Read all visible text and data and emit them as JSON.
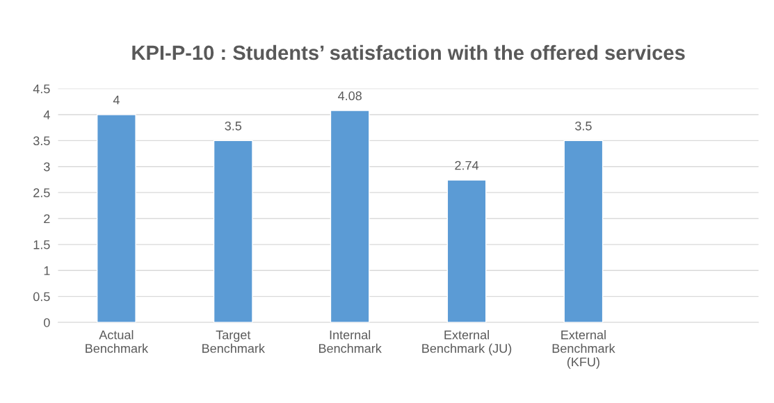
{
  "chart_data": {
    "type": "bar",
    "title": "KPI-P-10 : Students’ satisfaction with the offered services",
    "categories": [
      "Actual Benchmark",
      "Target Benchmark",
      "Internal Benchmark",
      "External Benchmark (JU)",
      "External Benchmark (KFU)",
      null
    ],
    "values": [
      4,
      3.5,
      4.08,
      2.74,
      3.5,
      null
    ],
    "color": "#5b9bd5",
    "ylim": [
      0,
      4.5
    ],
    "yticks": [
      0,
      0.5,
      1,
      1.5,
      2,
      2.5,
      3,
      3.5,
      4,
      4.5
    ],
    "grid": "y",
    "data_labels": true,
    "legend": false
  }
}
